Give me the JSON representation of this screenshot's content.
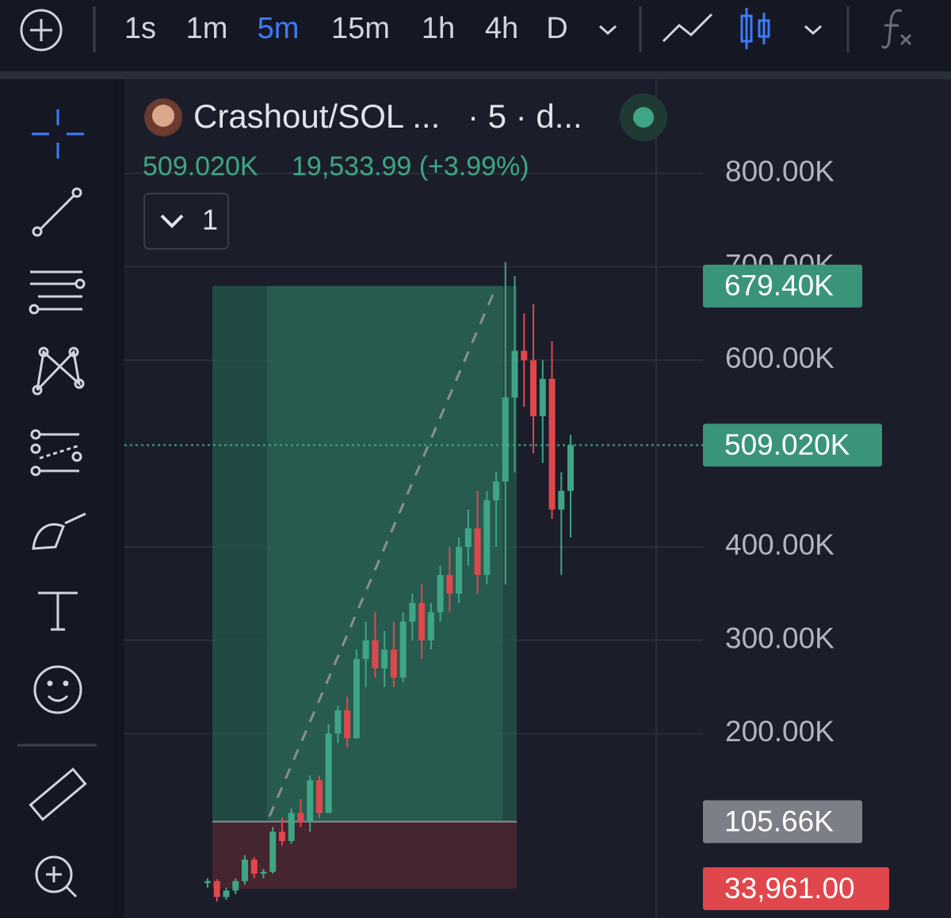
{
  "toolbar": {
    "timeframes": [
      "1s",
      "1m",
      "5m",
      "15m",
      "1h",
      "4h",
      "D"
    ]
  },
  "legend": {
    "symbol": "Crashout/SOL ...",
    "interval": "· 5 · d...",
    "price": "509.020K",
    "change": "19,533.99 (+3.99%)",
    "indicators": "1"
  },
  "chart_data": {
    "type": "candlestick",
    "ylim": [
      0,
      900000
    ],
    "yticks": [
      {
        "value": 800000,
        "label": "800.00K"
      },
      {
        "value": 700000,
        "label": "700.00K"
      },
      {
        "value": 600000,
        "label": "600.00K"
      },
      {
        "value": 400000,
        "label": "400.00K"
      },
      {
        "value": 300000,
        "label": "300.00K"
      },
      {
        "value": 200000,
        "label": "200.00K"
      }
    ],
    "grid": true,
    "up_color": "#3fa586",
    "down_color": "#e0474c",
    "open": [
      40000,
      42000,
      25000,
      32000,
      42000,
      65000,
      50000,
      52000,
      95000,
      85000,
      115000,
      105000,
      150000,
      115000,
      200000,
      225000,
      195000,
      280000,
      300000,
      270000,
      290000,
      260000,
      320000,
      340000,
      300000,
      330000,
      370000,
      350000,
      400000,
      420000,
      370000,
      450000,
      470000,
      560000,
      610000,
      600000,
      540000,
      580000,
      440000,
      460000
    ],
    "high": [
      45000,
      44000,
      35000,
      45000,
      70000,
      68000,
      55000,
      100000,
      110000,
      120000,
      130000,
      155000,
      155000,
      210000,
      230000,
      240000,
      290000,
      320000,
      330000,
      310000,
      320000,
      330000,
      350000,
      360000,
      340000,
      380000,
      400000,
      410000,
      440000,
      460000,
      460000,
      480000,
      705000,
      690000,
      650000,
      660000,
      600000,
      620000,
      480000,
      520000
    ],
    "low": [
      35000,
      20000,
      22000,
      28000,
      38000,
      45000,
      45000,
      50000,
      80000,
      82000,
      100000,
      95000,
      110000,
      115000,
      190000,
      185000,
      195000,
      250000,
      260000,
      250000,
      250000,
      255000,
      300000,
      280000,
      290000,
      320000,
      330000,
      340000,
      380000,
      350000,
      360000,
      400000,
      360000,
      480000,
      550000,
      500000,
      490000,
      430000,
      370000,
      410000
    ],
    "close": [
      42000,
      25000,
      32000,
      42000,
      65000,
      50000,
      52000,
      95000,
      85000,
      115000,
      105000,
      150000,
      115000,
      200000,
      225000,
      195000,
      280000,
      300000,
      270000,
      290000,
      260000,
      320000,
      340000,
      300000,
      330000,
      370000,
      350000,
      400000,
      420000,
      370000,
      450000,
      470000,
      560000,
      610000,
      600000,
      540000,
      580000,
      440000,
      460000,
      509020
    ],
    "position": {
      "target": {
        "value": 679400,
        "label": "679.40K"
      },
      "entry": {
        "value": 105660,
        "label": "105.66K"
      },
      "stop": {
        "value": 33961,
        "label": "33,961.00"
      }
    },
    "last_price": {
      "value": 509020,
      "label": "509.020K"
    }
  }
}
